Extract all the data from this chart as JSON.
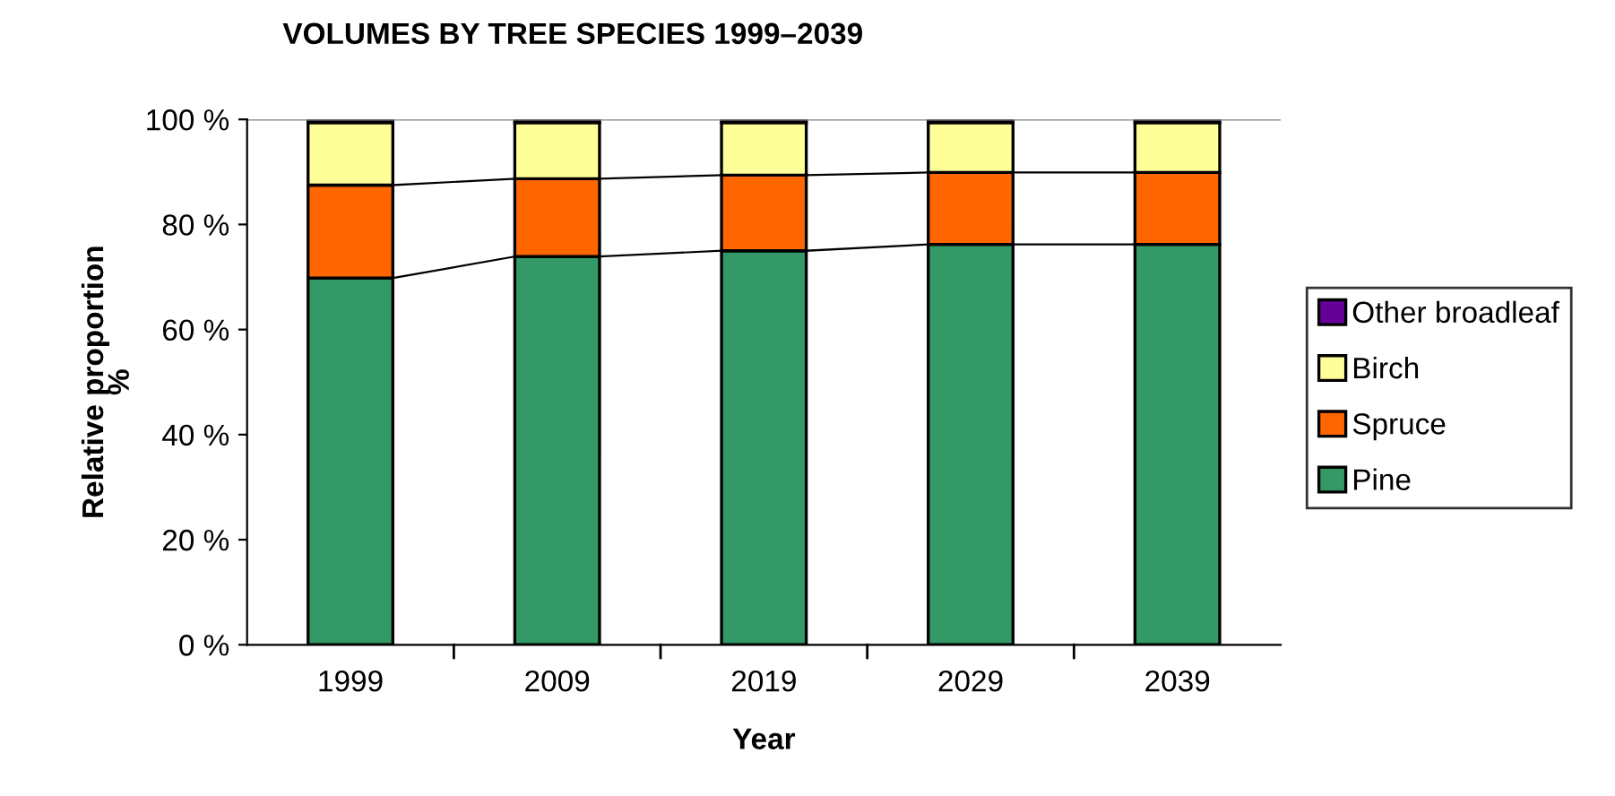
{
  "chart_data": {
    "type": "bar",
    "stacked": true,
    "title": "VOLUMES BY TREE SPECIES 1999–2039",
    "xlabel": "Year",
    "ylabel": "Relative proportion\n%",
    "categories": [
      "1999",
      "2009",
      "2019",
      "2029",
      "2039"
    ],
    "series": [
      {
        "name": "Pine",
        "color": "#339966",
        "values": [
          69.8,
          73.9,
          75.0,
          76.2,
          76.2
        ]
      },
      {
        "name": "Spruce",
        "color": "#ff6600",
        "values": [
          17.7,
          14.8,
          14.4,
          13.7,
          13.7
        ]
      },
      {
        "name": "Birch",
        "color": "#ffff99",
        "values": [
          11.9,
          10.7,
          10.0,
          9.5,
          9.5
        ]
      },
      {
        "name": "Other broadleaf",
        "color": "#660099",
        "values": [
          0.6,
          0.6,
          0.6,
          0.6,
          0.6
        ]
      }
    ],
    "ylim": [
      0,
      100
    ],
    "yticks": [
      {
        "value": 0,
        "label": "0 %"
      },
      {
        "value": 20,
        "label": "20 %"
      },
      {
        "value": 40,
        "label": "40 %"
      },
      {
        "value": 60,
        "label": "60 %"
      },
      {
        "value": 80,
        "label": "80 %"
      },
      {
        "value": 100,
        "label": "100 %"
      }
    ],
    "grid": false,
    "legend": "right"
  }
}
